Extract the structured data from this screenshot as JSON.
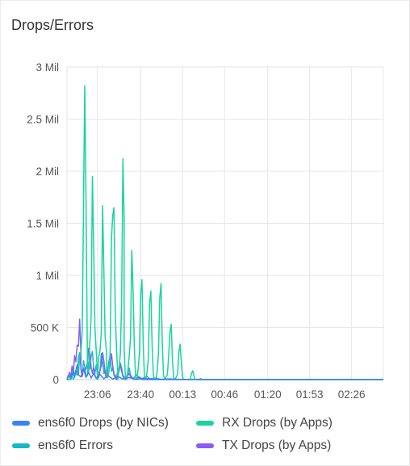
{
  "panel": {
    "title": "Drops/Errors"
  },
  "colors": {
    "grid": "#e6e6e6",
    "axis": "#c8c8c8",
    "ticks": "#555555"
  },
  "chart_data": {
    "type": "line",
    "title": "",
    "xlabel": "",
    "ylabel": "",
    "ylim": [
      0,
      3000000
    ],
    "y_ticks": [
      {
        "value": 0,
        "label": "0"
      },
      {
        "value": 500000,
        "label": "500 K"
      },
      {
        "value": 1000000,
        "label": "1 Mil"
      },
      {
        "value": 1500000,
        "label": "1.5 Mil"
      },
      {
        "value": 2000000,
        "label": "2 Mil"
      },
      {
        "value": 2500000,
        "label": "2.5 Mil"
      },
      {
        "value": 3000000,
        "label": "3 Mil"
      }
    ],
    "xlim": [
      "22:42",
      "02:51"
    ],
    "x_ticks": [
      {
        "value": "23:06",
        "label": "23:06"
      },
      {
        "value": "23:40",
        "label": "23:40"
      },
      {
        "value": "00:13",
        "label": "00:13"
      },
      {
        "value": "00:46",
        "label": "00:46"
      },
      {
        "value": "01:20",
        "label": "01:20"
      },
      {
        "value": "01:53",
        "label": "01:53"
      },
      {
        "value": "02:26",
        "label": "02:26"
      }
    ],
    "grid": true,
    "legend_position": "bottom",
    "series": [
      {
        "name": "ens6f0 Drops (by NICs)",
        "color": "#3b82f6",
        "points": [
          [
            "22:42",
            0
          ],
          [
            "22:43",
            40000
          ],
          [
            "22:45",
            15000
          ],
          [
            "22:47",
            90000
          ],
          [
            "22:48",
            30000
          ],
          [
            "22:50",
            140000
          ],
          [
            "22:51",
            45000
          ],
          [
            "22:53",
            25000
          ],
          [
            "22:55",
            110000
          ],
          [
            "22:57",
            20000
          ],
          [
            "22:59",
            70000
          ],
          [
            "23:01",
            15000
          ],
          [
            "23:03",
            60000
          ],
          [
            "23:05",
            12000
          ],
          [
            "23:08",
            50000
          ],
          [
            "23:11",
            8000
          ],
          [
            "23:14",
            40000
          ],
          [
            "23:18",
            5000
          ],
          [
            "23:22",
            30000
          ],
          [
            "23:26",
            5000
          ],
          [
            "23:31",
            20000
          ],
          [
            "23:36",
            3000
          ],
          [
            "23:44",
            10000
          ],
          [
            "23:52",
            2000
          ],
          [
            "00:05",
            3000
          ],
          [
            "00:30",
            0
          ],
          [
            "02:51",
            0
          ]
        ]
      },
      {
        "name": "RX Drops (by Apps)",
        "color": "#19d49e",
        "points": [
          [
            "22:42",
            0
          ],
          [
            "22:44",
            0
          ],
          [
            "22:46",
            30000
          ],
          [
            "22:47",
            0
          ],
          [
            "22:49",
            60000
          ],
          [
            "22:51",
            50000
          ],
          [
            "22:52",
            220000
          ],
          [
            "22:53",
            250000
          ],
          [
            "22:54",
            480000
          ],
          [
            "22:55",
            1650000
          ],
          [
            "22:55",
            1700000
          ],
          [
            "22:56",
            2820000
          ],
          [
            "22:57",
            1700000
          ],
          [
            "22:58",
            260000
          ],
          [
            "22:58",
            110000
          ],
          [
            "22:59",
            60000
          ],
          [
            "23:00",
            350000
          ],
          [
            "23:01",
            600000
          ],
          [
            "23:02",
            1950000
          ],
          [
            "23:03",
            1250000
          ],
          [
            "23:04",
            500000
          ],
          [
            "23:05",
            280000
          ],
          [
            "23:06",
            50000
          ],
          [
            "23:06",
            0
          ],
          [
            "23:07",
            220000
          ],
          [
            "23:08",
            280000
          ],
          [
            "23:09",
            450000
          ],
          [
            "23:10",
            1670000
          ],
          [
            "23:11",
            1050000
          ],
          [
            "23:12",
            420000
          ],
          [
            "23:13",
            280000
          ],
          [
            "23:13",
            30000
          ],
          [
            "23:14",
            20000
          ],
          [
            "23:15",
            80000
          ],
          [
            "23:16",
            280000
          ],
          [
            "23:17",
            1350000
          ],
          [
            "23:18",
            1580000
          ],
          [
            "23:19",
            1650000
          ],
          [
            "23:20",
            650000
          ],
          [
            "23:21",
            280000
          ],
          [
            "23:22",
            50000
          ],
          [
            "23:22",
            0
          ],
          [
            "23:23",
            100000
          ],
          [
            "23:24",
            250000
          ],
          [
            "23:25",
            750000
          ],
          [
            "23:26",
            2120000
          ],
          [
            "23:27",
            1550000
          ],
          [
            "23:27",
            300000
          ],
          [
            "23:28",
            20000
          ],
          [
            "23:29",
            0
          ],
          [
            "23:30",
            100000
          ],
          [
            "23:31",
            230000
          ],
          [
            "23:32",
            400000
          ],
          [
            "23:33",
            1240000
          ],
          [
            "23:34",
            850000
          ],
          [
            "23:35",
            320000
          ],
          [
            "23:36",
            20000
          ],
          [
            "23:37",
            0
          ],
          [
            "23:38",
            100000
          ],
          [
            "23:39",
            250000
          ],
          [
            "23:40",
            820000
          ],
          [
            "23:41",
            960000
          ],
          [
            "23:42",
            320000
          ],
          [
            "23:43",
            20000
          ],
          [
            "23:44",
            0
          ],
          [
            "23:45",
            70000
          ],
          [
            "23:46",
            200000
          ],
          [
            "23:47",
            730000
          ],
          [
            "23:48",
            850000
          ],
          [
            "23:49",
            320000
          ],
          [
            "23:50",
            40000
          ],
          [
            "23:51",
            0
          ],
          [
            "23:52",
            0
          ],
          [
            "23:53",
            80000
          ],
          [
            "23:54",
            250000
          ],
          [
            "23:55",
            780000
          ],
          [
            "23:56",
            920000
          ],
          [
            "23:57",
            350000
          ],
          [
            "23:58",
            40000
          ],
          [
            "23:59",
            0
          ],
          [
            "00:01",
            50000
          ],
          [
            "00:02",
            220000
          ],
          [
            "00:03",
            450000
          ],
          [
            "00:04",
            530000
          ],
          [
            "00:05",
            180000
          ],
          [
            "00:06",
            20000
          ],
          [
            "00:07",
            0
          ],
          [
            "00:09",
            50000
          ],
          [
            "00:10",
            250000
          ],
          [
            "00:11",
            340000
          ],
          [
            "00:12",
            160000
          ],
          [
            "00:13",
            20000
          ],
          [
            "00:14",
            0
          ],
          [
            "00:19",
            0
          ],
          [
            "00:20",
            60000
          ],
          [
            "00:21",
            85000
          ],
          [
            "00:22",
            30000
          ],
          [
            "00:23",
            0
          ],
          [
            "00:26",
            0
          ],
          [
            "00:27",
            10000
          ],
          [
            "00:28",
            3000
          ],
          [
            "00:29",
            0
          ],
          [
            "02:51",
            0
          ]
        ]
      },
      {
        "name": "ens6f0 Errors",
        "color": "#14b8c8",
        "points": [
          [
            "22:42",
            0
          ],
          [
            "22:45",
            0
          ],
          [
            "22:46",
            30000
          ],
          [
            "22:47",
            60000
          ],
          [
            "22:48",
            20000
          ],
          [
            "22:49",
            90000
          ],
          [
            "22:50",
            40000
          ],
          [
            "22:51",
            210000
          ],
          [
            "22:52",
            260000
          ],
          [
            "22:53",
            100000
          ],
          [
            "22:54",
            60000
          ],
          [
            "22:55",
            180000
          ],
          [
            "22:56",
            120000
          ],
          [
            "22:57",
            30000
          ],
          [
            "22:58",
            40000
          ],
          [
            "22:59",
            170000
          ],
          [
            "23:00",
            100000
          ],
          [
            "23:01",
            220000
          ],
          [
            "23:02",
            270000
          ],
          [
            "23:03",
            110000
          ],
          [
            "23:04",
            60000
          ],
          [
            "23:05",
            140000
          ],
          [
            "23:06",
            40000
          ],
          [
            "23:07",
            20000
          ],
          [
            "23:08",
            80000
          ],
          [
            "23:09",
            250000
          ],
          [
            "23:10",
            170000
          ],
          [
            "23:11",
            60000
          ],
          [
            "23:12",
            90000
          ],
          [
            "23:13",
            40000
          ],
          [
            "23:14",
            100000
          ],
          [
            "23:15",
            180000
          ],
          [
            "23:16",
            220000
          ],
          [
            "23:17",
            80000
          ],
          [
            "23:18",
            110000
          ],
          [
            "23:19",
            40000
          ],
          [
            "23:20",
            20000
          ],
          [
            "23:22",
            70000
          ],
          [
            "23:24",
            160000
          ],
          [
            "23:25",
            110000
          ],
          [
            "23:26",
            40000
          ],
          [
            "23:28",
            10000
          ],
          [
            "23:30",
            60000
          ],
          [
            "23:31",
            110000
          ],
          [
            "23:32",
            40000
          ],
          [
            "23:34",
            10000
          ],
          [
            "23:37",
            50000
          ],
          [
            "23:38",
            30000
          ],
          [
            "23:41",
            10000
          ],
          [
            "23:45",
            30000
          ],
          [
            "23:47",
            8000
          ],
          [
            "23:52",
            15000
          ],
          [
            "23:56",
            3000
          ],
          [
            "00:03",
            8000
          ],
          [
            "00:08",
            0
          ],
          [
            "00:20",
            3000
          ],
          [
            "00:25",
            0
          ],
          [
            "02:51",
            0
          ]
        ]
      },
      {
        "name": "TX Drops (by Apps)",
        "color": "#8b5cf6",
        "points": [
          [
            "22:42",
            0
          ],
          [
            "22:43",
            20000
          ],
          [
            "22:44",
            70000
          ],
          [
            "22:45",
            20000
          ],
          [
            "22:46",
            130000
          ],
          [
            "22:47",
            60000
          ],
          [
            "22:48",
            230000
          ],
          [
            "22:49",
            170000
          ],
          [
            "22:50",
            330000
          ],
          [
            "22:51",
            320000
          ],
          [
            "22:52",
            580000
          ],
          [
            "22:53",
            250000
          ],
          [
            "22:53",
            100000
          ],
          [
            "22:54",
            30000
          ],
          [
            "22:55",
            100000
          ],
          [
            "22:56",
            70000
          ],
          [
            "22:57",
            110000
          ],
          [
            "22:58",
            160000
          ],
          [
            "22:59",
            300000
          ],
          [
            "23:00",
            260000
          ],
          [
            "23:01",
            120000
          ],
          [
            "23:02",
            60000
          ],
          [
            "23:03",
            120000
          ],
          [
            "23:04",
            40000
          ],
          [
            "23:05",
            20000
          ],
          [
            "23:06",
            0
          ],
          [
            "23:07",
            40000
          ],
          [
            "23:08",
            90000
          ],
          [
            "23:09",
            130000
          ],
          [
            "23:10",
            260000
          ],
          [
            "23:11",
            180000
          ],
          [
            "23:12",
            60000
          ],
          [
            "23:13",
            20000
          ],
          [
            "23:14",
            50000
          ],
          [
            "23:15",
            90000
          ],
          [
            "23:16",
            160000
          ],
          [
            "23:17",
            250000
          ],
          [
            "23:18",
            130000
          ],
          [
            "23:19",
            60000
          ],
          [
            "23:20",
            20000
          ],
          [
            "23:21",
            0
          ],
          [
            "23:22",
            40000
          ],
          [
            "23:23",
            80000
          ],
          [
            "23:24",
            140000
          ],
          [
            "23:25",
            80000
          ],
          [
            "23:26",
            30000
          ],
          [
            "23:27",
            10000
          ],
          [
            "23:28",
            0
          ],
          [
            "23:29",
            20000
          ],
          [
            "23:31",
            60000
          ],
          [
            "23:32",
            30000
          ],
          [
            "23:34",
            10000
          ],
          [
            "23:35",
            0
          ],
          [
            "23:38",
            20000
          ],
          [
            "23:40",
            5000
          ],
          [
            "23:42",
            0
          ],
          [
            "02:51",
            0
          ]
        ]
      }
    ]
  }
}
